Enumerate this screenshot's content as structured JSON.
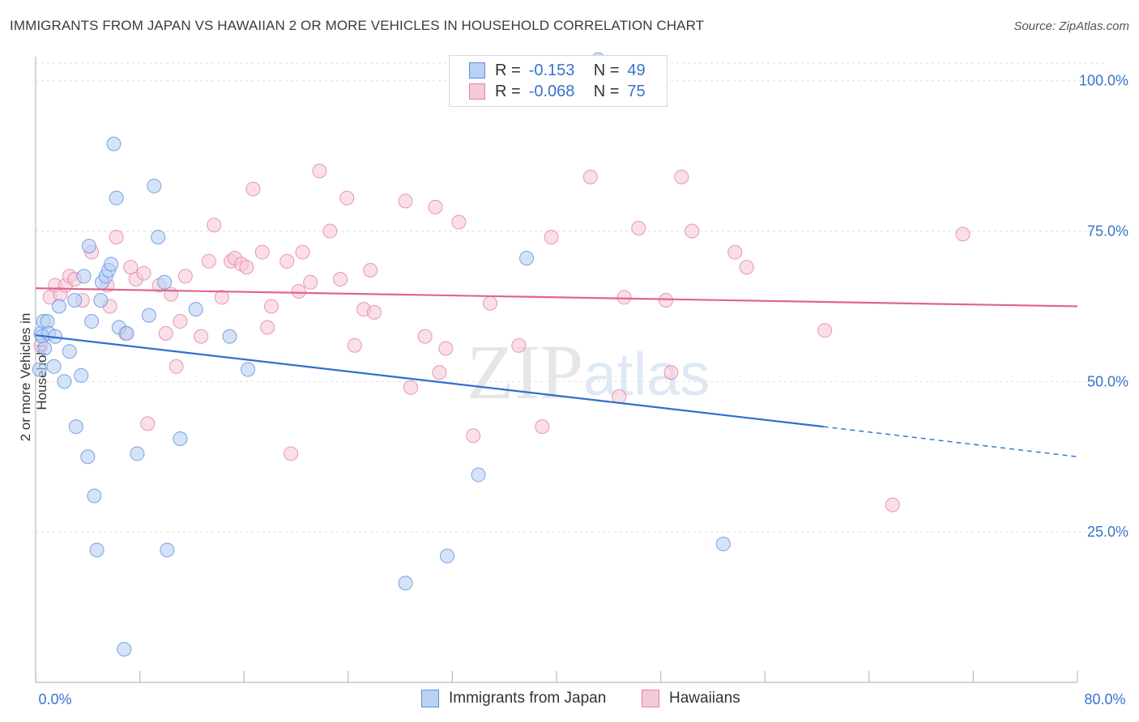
{
  "title": "IMMIGRANTS FROM JAPAN VS HAWAIIAN 2 OR MORE VEHICLES IN HOUSEHOLD CORRELATION CHART",
  "source": "Source: ZipAtlas.com",
  "watermark": "ZIPatlas",
  "legend": {
    "rows": [
      {
        "r_label": "R =",
        "r_value": "-0.153",
        "n_label": "N =",
        "n_value": "49"
      },
      {
        "r_label": "R =",
        "r_value": "-0.068",
        "n_label": "N =",
        "n_value": "75"
      }
    ]
  },
  "bottom_legend": [
    "Immigrants from Japan",
    "Hawaiians"
  ],
  "colors": {
    "blue_fill": "#b9d1f5",
    "blue_stroke": "#5b8fd8",
    "blue_line": "#2f6fcf",
    "pink_fill": "#f6c9d8",
    "pink_stroke": "#e47fa4",
    "pink_line": "#e0648e",
    "tick_blue": "#3a72c9",
    "grid": "#dddddd"
  },
  "chart_data": {
    "type": "scatter",
    "title": "IMMIGRANTS FROM JAPAN VS HAWAIIAN 2 OR MORE VEHICLES IN HOUSEHOLD CORRELATION CHART",
    "xlabel": "",
    "ylabel": "2 or more Vehicles in Household",
    "xlim": [
      0,
      80
    ],
    "ylim": [
      0,
      104
    ],
    "x_tick_labels": [
      "0.0%",
      "80.0%"
    ],
    "y_ticks": [
      25,
      50,
      75,
      100
    ],
    "y_tick_labels": [
      "25.0%",
      "50.0%",
      "75.0%",
      "100.0%"
    ],
    "series": [
      {
        "name": "Immigrants from Japan",
        "R": -0.153,
        "N": 49,
        "trend": {
          "x0": 0,
          "y0": 57.7,
          "x1": 60.5,
          "y1": 42.5,
          "dash_to_x": 80,
          "dash_to_y": 37.5
        },
        "points": [
          [
            0.3,
            52.0
          ],
          [
            0.4,
            58.0
          ],
          [
            0.5,
            57.5
          ],
          [
            0.6,
            60.0
          ],
          [
            0.7,
            55.5
          ],
          [
            0.9,
            60.0
          ],
          [
            1.0,
            58.0
          ],
          [
            1.4,
            52.5
          ],
          [
            1.5,
            57.5
          ],
          [
            1.8,
            62.5
          ],
          [
            2.2,
            50.0
          ],
          [
            2.6,
            55.0
          ],
          [
            3.0,
            63.5
          ],
          [
            3.1,
            42.5
          ],
          [
            3.5,
            51.0
          ],
          [
            3.7,
            67.5
          ],
          [
            4.0,
            37.5
          ],
          [
            4.1,
            72.5
          ],
          [
            4.3,
            60.0
          ],
          [
            4.5,
            31.0
          ],
          [
            4.7,
            22.0
          ],
          [
            5.0,
            63.5
          ],
          [
            5.1,
            66.5
          ],
          [
            5.4,
            67.5
          ],
          [
            5.6,
            68.5
          ],
          [
            5.8,
            69.5
          ],
          [
            6.0,
            89.5
          ],
          [
            6.2,
            80.5
          ],
          [
            6.4,
            59.0
          ],
          [
            6.8,
            5.5
          ],
          [
            7.0,
            58.0
          ],
          [
            7.8,
            38.0
          ],
          [
            8.7,
            61.0
          ],
          [
            9.1,
            82.5
          ],
          [
            9.4,
            74.0
          ],
          [
            9.9,
            66.5
          ],
          [
            10.1,
            22.0
          ],
          [
            11.1,
            40.5
          ],
          [
            12.3,
            62.0
          ],
          [
            14.9,
            57.5
          ],
          [
            16.3,
            52.0
          ],
          [
            28.4,
            16.5
          ],
          [
            31.6,
            21.0
          ],
          [
            34.0,
            34.5
          ],
          [
            37.7,
            70.5
          ],
          [
            43.2,
            103.5
          ],
          [
            52.8,
            23.0
          ]
        ]
      },
      {
        "name": "Hawaiians",
        "R": -0.068,
        "N": 75,
        "trend": {
          "x0": 0,
          "y0": 65.5,
          "x1": 80,
          "y1": 62.5
        },
        "points": [
          [
            0.4,
            56.0
          ],
          [
            1.1,
            64.0
          ],
          [
            1.5,
            66.0
          ],
          [
            1.9,
            64.5
          ],
          [
            2.3,
            66.0
          ],
          [
            2.6,
            67.5
          ],
          [
            3.0,
            67.0
          ],
          [
            3.6,
            63.5
          ],
          [
            4.3,
            71.5
          ],
          [
            5.5,
            66.0
          ],
          [
            5.7,
            62.5
          ],
          [
            6.2,
            74.0
          ],
          [
            6.9,
            58.0
          ],
          [
            7.3,
            69.0
          ],
          [
            7.7,
            67.0
          ],
          [
            8.3,
            68.0
          ],
          [
            8.6,
            43.0
          ],
          [
            9.5,
            66.0
          ],
          [
            10.0,
            58.0
          ],
          [
            10.4,
            64.5
          ],
          [
            10.8,
            52.5
          ],
          [
            11.1,
            60.0
          ],
          [
            11.5,
            67.5
          ],
          [
            12.7,
            57.5
          ],
          [
            13.3,
            70.0
          ],
          [
            13.7,
            76.0
          ],
          [
            14.3,
            64.0
          ],
          [
            15.0,
            70.0
          ],
          [
            15.3,
            70.5
          ],
          [
            15.8,
            69.5
          ],
          [
            16.2,
            69.0
          ],
          [
            16.7,
            82.0
          ],
          [
            17.4,
            71.5
          ],
          [
            17.8,
            59.0
          ],
          [
            18.1,
            62.5
          ],
          [
            19.3,
            70.0
          ],
          [
            19.6,
            38.0
          ],
          [
            20.2,
            65.0
          ],
          [
            20.5,
            71.5
          ],
          [
            21.1,
            66.5
          ],
          [
            21.8,
            85.0
          ],
          [
            22.6,
            75.0
          ],
          [
            23.4,
            67.0
          ],
          [
            23.9,
            80.5
          ],
          [
            24.5,
            56.0
          ],
          [
            25.2,
            62.0
          ],
          [
            25.7,
            68.5
          ],
          [
            26.0,
            61.5
          ],
          [
            28.4,
            80.0
          ],
          [
            28.8,
            49.0
          ],
          [
            29.9,
            57.5
          ],
          [
            30.7,
            79.0
          ],
          [
            31.0,
            51.5
          ],
          [
            31.5,
            55.5
          ],
          [
            32.5,
            76.5
          ],
          [
            33.6,
            41.0
          ],
          [
            34.9,
            63.0
          ],
          [
            37.1,
            56.0
          ],
          [
            38.9,
            42.5
          ],
          [
            39.6,
            74.0
          ],
          [
            42.6,
            84.0
          ],
          [
            44.8,
            47.5
          ],
          [
            45.2,
            64.0
          ],
          [
            46.3,
            75.5
          ],
          [
            48.4,
            63.5
          ],
          [
            48.8,
            51.5
          ],
          [
            49.6,
            84.0
          ],
          [
            50.4,
            75.0
          ],
          [
            53.7,
            71.5
          ],
          [
            54.6,
            69.0
          ],
          [
            60.6,
            58.5
          ],
          [
            65.8,
            29.5
          ],
          [
            71.2,
            74.5
          ]
        ]
      }
    ]
  }
}
